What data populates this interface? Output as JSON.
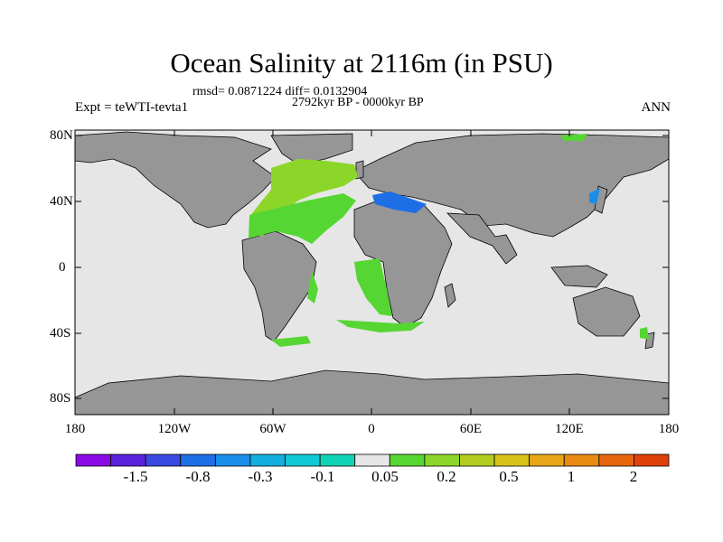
{
  "title": "Ocean Salinity at 2116m (in PSU)",
  "stats": "rmsd= 0.0871224 diff= 0.0132904",
  "period": "2792kyr BP - 0000kyr BP",
  "experiment": "Expt = teWTI-tevta1",
  "season": "ANN",
  "y_axis": {
    "ticks": [
      "80N",
      "40N",
      "0",
      "40S",
      "80S"
    ]
  },
  "x_axis": {
    "ticks": [
      "180",
      "120W",
      "60W",
      "0",
      "60E",
      "120E",
      "180"
    ]
  },
  "colorbar": {
    "labels": [
      "-1.5",
      "-0.8",
      "-0.3",
      "-0.1",
      "0.05",
      "0.2",
      "0.5",
      "1",
      "2"
    ],
    "colors": [
      "#8a0ae6",
      "#5a22dc",
      "#3a4ae0",
      "#1e6ee6",
      "#1a8ee8",
      "#12aede",
      "#10c8d6",
      "#10d2b4",
      "#e6e6e6",
      "#56d632",
      "#8cd62a",
      "#b2cc1e",
      "#d8c21a",
      "#e8a616",
      "#e88a12",
      "#e6660e",
      "#e0400a"
    ]
  },
  "colors": {
    "land": "#969696",
    "ocean_neutral": "#e6e6e6",
    "positive_anomaly": "#56d632",
    "negative_anomaly": "#1e6ee6"
  }
}
